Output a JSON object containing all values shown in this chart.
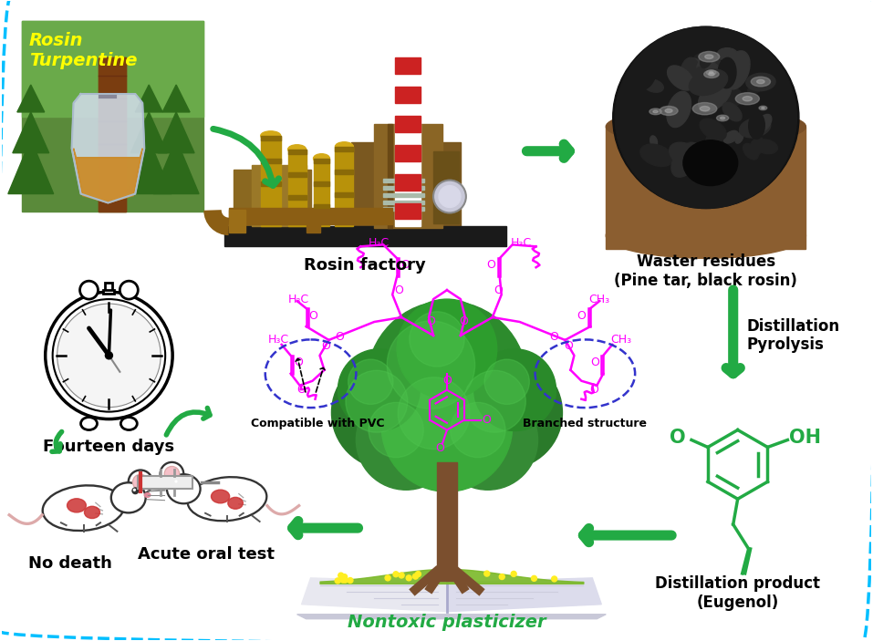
{
  "bg_color": "#ffffff",
  "border_color": "#00bfff",
  "green": "#22aa44",
  "magenta": "#ff00ff",
  "eugenol_green": "#22aa44",
  "blue_dash": "#3333cc",
  "labels": {
    "rosin_turpentine": "Rosin\nTurpentine",
    "rosin_factory": "Rosin factory",
    "waster_residues": "Waster residues\n(Pine tar, black rosin)",
    "distillation_pyrolysis": "Distillation\nPyrolysis",
    "distillation_product": "Distillation product\n(Eugenol)",
    "nontoxic_plasticizer": "Nontoxic plasticizer",
    "compatible": "Compatible with PVC",
    "branched": "Branched structure",
    "fourteen_days": "Fourteen days",
    "no_death": "No death",
    "acute_oral": "Acute oral test"
  },
  "rt_color": "#ffff00",
  "black": "#000000"
}
